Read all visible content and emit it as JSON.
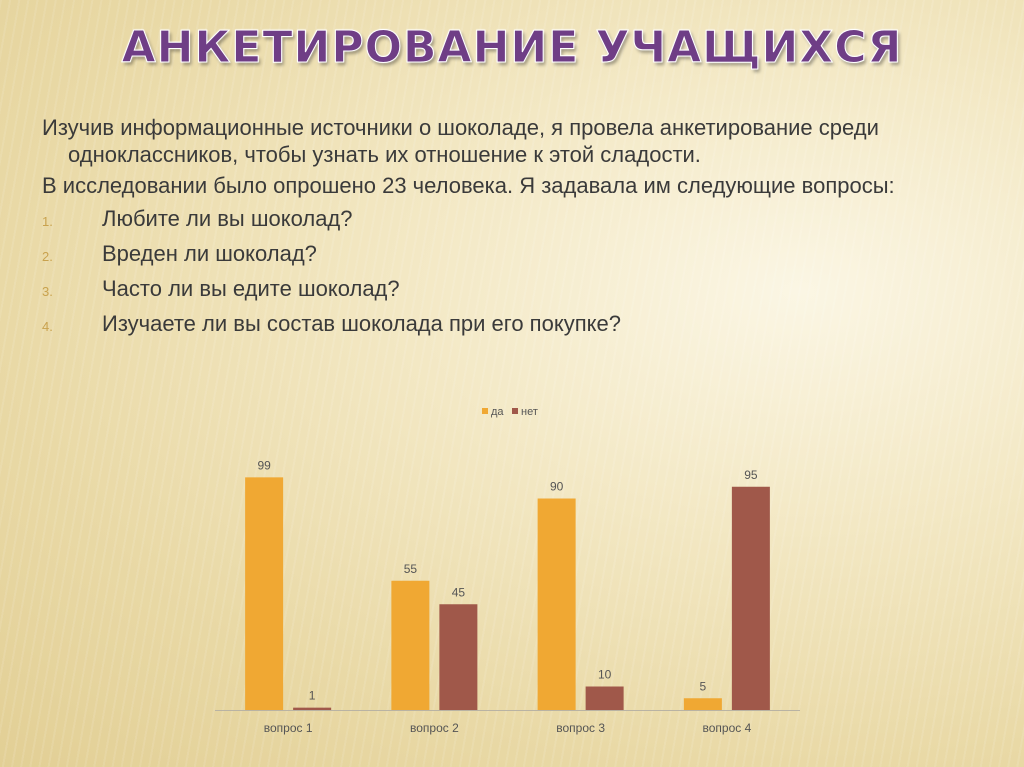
{
  "slide": {
    "title": "АНКЕТИРОВАНИЕ УЧАЩИХСЯ",
    "paragraph1": "Изучив информационные источники о шоколаде, я провела анкетирование среди  одноклассников, чтобы узнать их отношение к этой сладости.",
    "paragraph2": "В исследовании было опрошено 23 человека. Я задавала им следующие вопросы:",
    "questions": [
      {
        "num": "1.",
        "text": "Любите ли вы шоколад?"
      },
      {
        "num": "2.",
        "text": "Вреден ли  шоколад?"
      },
      {
        "num": "3.",
        "text": "Часто ли вы едите шоколад?"
      },
      {
        "num": "4.",
        "text": "Изучаете ли вы состав шоколада при его покупке?"
      }
    ]
  },
  "chart_data": {
    "type": "bar",
    "categories": [
      "вопрос 1",
      "вопрос 2",
      "вопрос 3",
      "вопрос 4"
    ],
    "series": [
      {
        "name": "да",
        "values": [
          99,
          55,
          90,
          5
        ],
        "color": "#f0a833"
      },
      {
        "name": "нет",
        "values": [
          1,
          45,
          10,
          95
        ],
        "color": "#a0584a"
      }
    ],
    "ylim": [
      0,
      100
    ],
    "data_labels": true,
    "legend": "top-center",
    "grid": false
  }
}
